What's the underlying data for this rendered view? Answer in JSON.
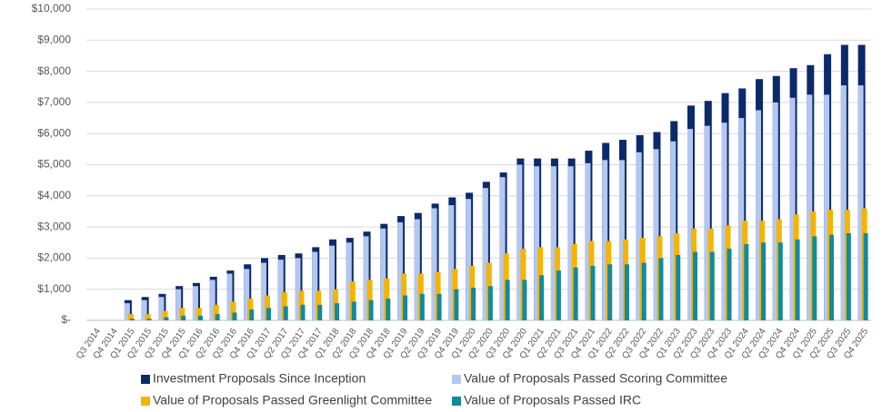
{
  "chart_data": {
    "type": "bar",
    "categories": [
      "Q3 2014",
      "Q4 2014",
      "Q1 2015",
      "Q2 2015",
      "Q3 2015",
      "Q4 2015",
      "Q1 2016",
      "Q2 2016",
      "Q3 2016",
      "Q4 2016",
      "Q1 2017",
      "Q2 2017",
      "Q3 2017",
      "Q4 2017",
      "Q1 2018",
      "Q2 2018",
      "Q3 2018",
      "Q4 2018",
      "Q1 2019",
      "Q2 2019",
      "Q3 2019",
      "Q4 2019",
      "Q1 2020",
      "Q2 2020",
      "Q3 2020",
      "Q4 2020",
      "Q1 2021",
      "Q2 2021",
      "Q3 2021",
      "Q4 2021",
      "Q1 2022",
      "Q2 2022",
      "Q3 2022",
      "Q4 2022",
      "Q1 2023",
      "Q2 2023",
      "Q3 2023",
      "Q4 2023",
      "Q1 2024",
      "Q2 2024",
      "Q3 2024",
      "Q4 2024",
      "Q1 2025",
      "Q2 2025",
      "Q3 2025",
      "Q4 2025"
    ],
    "series": [
      {
        "name": "Investment Proposals Since Inception",
        "color": "#0b2a6b",
        "values": [
          0,
          0,
          650,
          750,
          850,
          1100,
          1200,
          1400,
          1600,
          1800,
          2000,
          2100,
          2150,
          2350,
          2600,
          2650,
          2850,
          3100,
          3350,
          3450,
          3750,
          3950,
          4100,
          4450,
          4750,
          5200,
          5200,
          5200,
          5200,
          5450,
          5700,
          5800,
          5950,
          6050,
          6400,
          6900,
          7050,
          7300,
          7450,
          7750,
          7850,
          8100,
          8200,
          8550,
          8850,
          8850
        ]
      },
      {
        "name": "Value of Proposals Passed Scoring Committee",
        "color": "#b4c7f0",
        "values": [
          0,
          0,
          550,
          650,
          750,
          1000,
          1100,
          1300,
          1500,
          1650,
          1850,
          1950,
          2000,
          2200,
          2400,
          2500,
          2700,
          2950,
          3150,
          3250,
          3600,
          3700,
          3900,
          4250,
          4600,
          5000,
          4950,
          4950,
          4950,
          5050,
          5150,
          5150,
          5400,
          5500,
          5750,
          6150,
          6250,
          6350,
          6500,
          6750,
          7000,
          7150,
          7250,
          7250,
          7550,
          7550
        ]
      },
      {
        "name": "Value of Proposals Passed Greenlight Committee",
        "color": "#f5b400",
        "values": [
          0,
          0,
          200,
          200,
          300,
          400,
          400,
          500,
          600,
          700,
          800,
          900,
          950,
          950,
          1000,
          1250,
          1300,
          1350,
          1500,
          1500,
          1550,
          1650,
          1750,
          1850,
          2150,
          2300,
          2350,
          2350,
          2450,
          2550,
          2550,
          2600,
          2650,
          2700,
          2800,
          2950,
          2950,
          3050,
          3200,
          3200,
          3250,
          3400,
          3500,
          3550,
          3550,
          3600
        ]
      },
      {
        "name": "Value of Proposals Passed IRC",
        "color": "#138a9c",
        "values": [
          0,
          0,
          50,
          50,
          100,
          150,
          150,
          200,
          250,
          350,
          400,
          450,
          500,
          500,
          550,
          600,
          650,
          700,
          800,
          850,
          850,
          1000,
          1050,
          1100,
          1300,
          1300,
          1450,
          1600,
          1700,
          1750,
          1800,
          1800,
          1850,
          2000,
          2100,
          2200,
          2200,
          2300,
          2450,
          2500,
          2500,
          2600,
          2700,
          2750,
          2800,
          2800
        ]
      }
    ],
    "ylim": [
      0,
      10000
    ],
    "yticks": [
      {
        "value": 0,
        "label": "$-"
      },
      {
        "value": 1000,
        "label": "$1,000"
      },
      {
        "value": 2000,
        "label": "$2,000"
      },
      {
        "value": 3000,
        "label": "$3,000"
      },
      {
        "value": 4000,
        "label": "$4,000"
      },
      {
        "value": 5000,
        "label": "$5,000"
      },
      {
        "value": 6000,
        "label": "$6,000"
      },
      {
        "value": 7000,
        "label": "$7,000"
      },
      {
        "value": 8000,
        "label": "$8,000"
      },
      {
        "value": 9000,
        "label": "$9,000"
      },
      {
        "value": 10000,
        "label": "$10,000"
      }
    ],
    "grid": true,
    "legend": "bottom"
  }
}
